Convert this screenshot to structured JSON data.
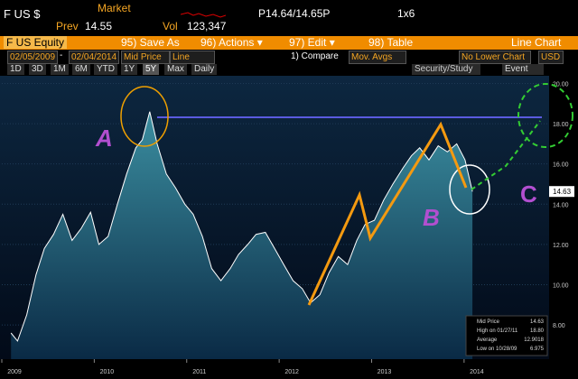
{
  "header": {
    "ticker": "F US $",
    "market": "Market",
    "prev_label": "Prev",
    "prev": "14.55",
    "vol_label": "Vol",
    "vol": "123,347",
    "quote": "P14.64/14.65P",
    "size": "1x6"
  },
  "toolbar": {
    "security": "F US Equity",
    "buttons": [
      "95) Save As",
      "96) Actions ▾",
      "97) Edit ▾",
      "98) Table"
    ],
    "chart_kind": "Line Chart",
    "start_date": "02/05/2009",
    "dash": "-",
    "end_date": "02/04/2014",
    "field": "Mid Price",
    "style": "Line",
    "compare": "1) Compare",
    "mov_avgs": "Mov. Avgs",
    "lower": "No Lower Chart",
    "currency": "USD",
    "periods": [
      "1D",
      "3D",
      "1M",
      "6M",
      "YTD",
      "1Y",
      "5Y",
      "Max",
      "Daily"
    ],
    "study": "Security/Study",
    "event": "Event"
  },
  "chart_data": {
    "type": "area",
    "color": "#ffffff",
    "x": [
      2009.1,
      2009.17,
      2009.27,
      2009.37,
      2009.46,
      2009.56,
      2009.66,
      2009.76,
      2009.86,
      2009.96,
      2010.05,
      2010.15,
      2010.25,
      2010.35,
      2010.45,
      2010.52,
      2010.6,
      2010.68,
      2010.78,
      2010.88,
      2010.98,
      2011.07,
      2011.17,
      2011.27,
      2011.37,
      2011.47,
      2011.56,
      2011.66,
      2011.75,
      2011.85,
      2011.95,
      2012.05,
      2012.15,
      2012.25,
      2012.34,
      2012.44,
      2012.54,
      2012.64,
      2012.74,
      2012.84,
      2012.93,
      2013.03,
      2013.13,
      2013.23,
      2013.34,
      2013.43,
      2013.52,
      2013.62,
      2013.72,
      2013.82,
      2013.92,
      2014.01,
      2014.09
    ],
    "values": [
      7.6,
      7.2,
      8.5,
      10.5,
      11.8,
      12.5,
      13.5,
      12.2,
      12.8,
      13.6,
      12.0,
      12.4,
      14.0,
      15.5,
      16.8,
      17.2,
      18.6,
      17.0,
      15.5,
      14.8,
      14.0,
      13.5,
      12.4,
      10.8,
      10.2,
      10.8,
      11.5,
      12.0,
      12.5,
      12.6,
      11.8,
      11.0,
      10.2,
      9.8,
      9.1,
      9.5,
      10.6,
      11.4,
      11.0,
      12.2,
      13.0,
      13.2,
      14.2,
      15.0,
      15.8,
      16.4,
      16.8,
      16.2,
      16.9,
      16.6,
      17.0,
      16.2,
      14.63
    ],
    "xlim": [
      2009.0,
      2014.9
    ],
    "xticks": [
      2009,
      2010,
      2011,
      2012,
      2013,
      2014
    ],
    "ylim": [
      6.3,
      20.2
    ],
    "yticks": [
      {
        "value": 8,
        "label": "8.00"
      },
      {
        "value": 10,
        "label": "10.00"
      },
      {
        "value": 12,
        "label": "12.00"
      },
      {
        "value": 14,
        "label": "14.00"
      },
      {
        "value": 16,
        "label": "16.00"
      },
      {
        "value": 18,
        "label": "18.00"
      },
      {
        "value": 20,
        "label": "20.00"
      }
    ],
    "grid": true,
    "price_tag": "14.63",
    "annotations": [
      "A",
      "B",
      "C"
    ],
    "legend": [
      {
        "label": "Mid Price",
        "value": "14.63"
      },
      {
        "label": "High on 01/27/11",
        "value": "18.80"
      },
      {
        "label": "Average",
        "value": "12.9018"
      },
      {
        "label": "Low on 10/28/09",
        "value": "6.975"
      }
    ]
  }
}
